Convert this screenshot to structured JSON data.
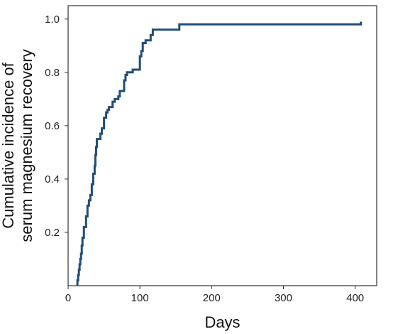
{
  "chart_data": {
    "type": "line",
    "step": true,
    "xlabel": "Days",
    "ylabel_lines": [
      "Cumulative incidence of",
      "serum magnesium recovery"
    ],
    "xlim": [
      0,
      430
    ],
    "ylim": [
      0,
      1.05
    ],
    "x_ticks": [
      0,
      100,
      200,
      300,
      400
    ],
    "x_tick_labels": [
      "0",
      "100",
      "200",
      "300",
      "400"
    ],
    "y_ticks": [
      0.2,
      0.4,
      0.6,
      0.8,
      1.0
    ],
    "y_tick_labels": [
      "0.2",
      "0.4",
      "0.6",
      "0.8",
      "1.0"
    ],
    "grid": false,
    "series": [
      {
        "color": "#1f4e79",
        "x": [
          13,
          14,
          15,
          16,
          17,
          18,
          19,
          20,
          22,
          25,
          27,
          29,
          31,
          33,
          35,
          37,
          38,
          39,
          40,
          45,
          47,
          50,
          53,
          55,
          57,
          62,
          65,
          70,
          72,
          78,
          80,
          82,
          90,
          100,
          102,
          104,
          108,
          115,
          118,
          155,
          408
        ],
        "y": [
          0.02,
          0.04,
          0.06,
          0.08,
          0.1,
          0.12,
          0.15,
          0.18,
          0.22,
          0.26,
          0.3,
          0.32,
          0.34,
          0.38,
          0.42,
          0.45,
          0.49,
          0.52,
          0.55,
          0.57,
          0.59,
          0.63,
          0.65,
          0.66,
          0.67,
          0.69,
          0.7,
          0.71,
          0.73,
          0.77,
          0.79,
          0.8,
          0.81,
          0.86,
          0.88,
          0.91,
          0.92,
          0.94,
          0.96,
          0.98,
          0.99
        ]
      }
    ]
  }
}
